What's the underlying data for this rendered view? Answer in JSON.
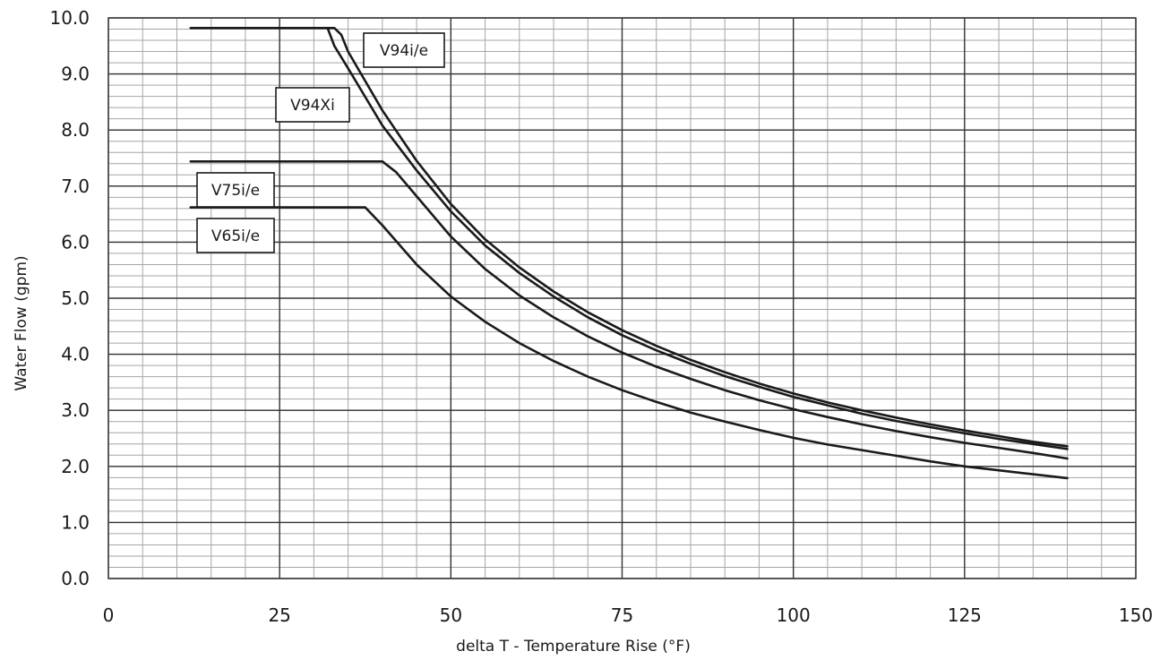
{
  "chart_data": {
    "type": "line",
    "title": "",
    "xlabel": "delta T - Temperature Rise (°F)",
    "ylabel": "Water Flow (gpm)",
    "xlim": [
      0,
      150
    ],
    "ylim": [
      0,
      10
    ],
    "x_major_ticks": [
      0,
      25,
      50,
      75,
      100,
      125,
      150
    ],
    "x_tick_labels": [
      "0",
      "25",
      "50",
      "75",
      "100",
      "125",
      "150"
    ],
    "y_major_ticks": [
      0,
      1,
      2,
      3,
      4,
      5,
      6,
      7,
      8,
      9,
      10
    ],
    "y_tick_labels": [
      "0.0",
      "1.0",
      "2.0",
      "3.0",
      "4.0",
      "5.0",
      "6.0",
      "7.0",
      "8.0",
      "9.0",
      "10.0"
    ],
    "x_minor_step": 5,
    "y_minor_step": 0.2,
    "grid": true,
    "line_color": "#1a1a1a",
    "grid_color": "#a6a6a6",
    "series": [
      {
        "name": "V94i/e",
        "points": [
          [
            12,
            9.82
          ],
          [
            33,
            9.82
          ],
          [
            34,
            9.7
          ],
          [
            35,
            9.4
          ],
          [
            40,
            8.35
          ],
          [
            45,
            7.45
          ],
          [
            50,
            6.68
          ],
          [
            55,
            6.05
          ],
          [
            60,
            5.55
          ],
          [
            65,
            5.12
          ],
          [
            70,
            4.75
          ],
          [
            75,
            4.43
          ],
          [
            80,
            4.15
          ],
          [
            85,
            3.9
          ],
          [
            90,
            3.68
          ],
          [
            95,
            3.48
          ],
          [
            100,
            3.3
          ],
          [
            105,
            3.14
          ],
          [
            110,
            3.0
          ],
          [
            115,
            2.87
          ],
          [
            120,
            2.75
          ],
          [
            125,
            2.64
          ],
          [
            130,
            2.54
          ],
          [
            135,
            2.44
          ],
          [
            140,
            2.36
          ]
        ]
      },
      {
        "name": "V94Xi",
        "points": [
          [
            32,
            9.82
          ],
          [
            33,
            9.5
          ],
          [
            35,
            9.1
          ],
          [
            40,
            8.08
          ],
          [
            45,
            7.28
          ],
          [
            50,
            6.55
          ],
          [
            55,
            5.94
          ],
          [
            60,
            5.45
          ],
          [
            65,
            5.03
          ],
          [
            70,
            4.66
          ],
          [
            75,
            4.34
          ],
          [
            80,
            4.07
          ],
          [
            85,
            3.83
          ],
          [
            90,
            3.61
          ],
          [
            95,
            3.42
          ],
          [
            100,
            3.24
          ],
          [
            105,
            3.09
          ],
          [
            110,
            2.94
          ],
          [
            115,
            2.81
          ],
          [
            120,
            2.7
          ],
          [
            125,
            2.59
          ],
          [
            130,
            2.49
          ],
          [
            135,
            2.4
          ],
          [
            140,
            2.31
          ]
        ]
      },
      {
        "name": "V75i/e",
        "points": [
          [
            12,
            7.44
          ],
          [
            40,
            7.44
          ],
          [
            42,
            7.25
          ],
          [
            45,
            6.82
          ],
          [
            50,
            6.1
          ],
          [
            55,
            5.52
          ],
          [
            60,
            5.05
          ],
          [
            65,
            4.66
          ],
          [
            70,
            4.32
          ],
          [
            75,
            4.03
          ],
          [
            80,
            3.78
          ],
          [
            85,
            3.56
          ],
          [
            90,
            3.36
          ],
          [
            95,
            3.18
          ],
          [
            100,
            3.02
          ],
          [
            105,
            2.88
          ],
          [
            110,
            2.75
          ],
          [
            115,
            2.63
          ],
          [
            120,
            2.52
          ],
          [
            125,
            2.42
          ],
          [
            130,
            2.33
          ],
          [
            135,
            2.24
          ],
          [
            140,
            2.14
          ]
        ]
      },
      {
        "name": "V65i/e",
        "points": [
          [
            12,
            6.62
          ],
          [
            37.5,
            6.62
          ],
          [
            40,
            6.3
          ],
          [
            45,
            5.6
          ],
          [
            50,
            5.03
          ],
          [
            55,
            4.58
          ],
          [
            60,
            4.2
          ],
          [
            65,
            3.88
          ],
          [
            70,
            3.6
          ],
          [
            75,
            3.36
          ],
          [
            80,
            3.15
          ],
          [
            85,
            2.96
          ],
          [
            90,
            2.8
          ],
          [
            95,
            2.65
          ],
          [
            100,
            2.51
          ],
          [
            105,
            2.39
          ],
          [
            110,
            2.29
          ],
          [
            115,
            2.19
          ],
          [
            120,
            2.09
          ],
          [
            125,
            2.0
          ],
          [
            130,
            1.93
          ],
          [
            135,
            1.86
          ],
          [
            140,
            1.79
          ]
        ]
      }
    ]
  }
}
